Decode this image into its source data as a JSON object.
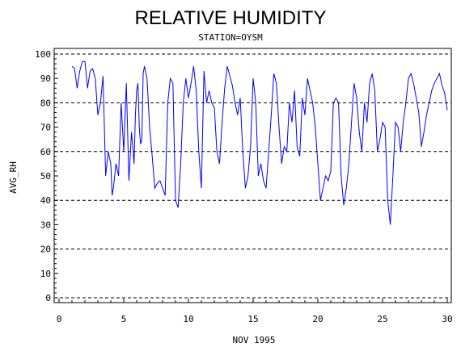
{
  "chart_data": {
    "type": "line",
    "title": "RELATIVE HUMIDITY",
    "subtitle": "STATION=OYSM",
    "xlabel": "NOV 1995",
    "ylabel": "AVG_RH",
    "xlim": [
      0,
      30
    ],
    "ylim": [
      0,
      100
    ],
    "x_ticks": [
      0,
      5,
      10,
      15,
      20,
      25,
      30
    ],
    "y_ticks": [
      0,
      10,
      20,
      30,
      40,
      50,
      60,
      70,
      80,
      90,
      100
    ],
    "grid": {
      "horizontal_dashed_at": [
        0,
        20,
        40,
        60,
        80,
        100
      ]
    },
    "line_color": "#0000ff",
    "series": [
      {
        "x": [
          1.0,
          1.2,
          1.4,
          1.6,
          1.8,
          2.0,
          2.2,
          2.4,
          2.6,
          2.8,
          3.0,
          3.2,
          3.4,
          3.6,
          3.8,
          4.0,
          4.1,
          4.2,
          4.4,
          4.6,
          4.8,
          5.0,
          5.2,
          5.4,
          5.6,
          5.8,
          5.9,
          6.0,
          6.1,
          6.2,
          6.3,
          6.4,
          6.5,
          6.6,
          6.8,
          7.0,
          7.2,
          7.4,
          7.6,
          7.8,
          8.0,
          8.2,
          8.4,
          8.6,
          8.8,
          9.0,
          9.2,
          9.4,
          9.6,
          9.8,
          10.0,
          10.2,
          10.4,
          10.6,
          10.8,
          11.0,
          11.2,
          11.4,
          11.6,
          11.8,
          12.0,
          12.2,
          12.4,
          12.6,
          12.8,
          13.0,
          13.2,
          13.4,
          13.6,
          13.8,
          14.0,
          14.2,
          14.4,
          14.6,
          14.8,
          15.0,
          15.2,
          15.4,
          15.6,
          15.8,
          16.0,
          16.2,
          16.4,
          16.6,
          16.8,
          17.0,
          17.2,
          17.4,
          17.6,
          17.8,
          18.0,
          18.2,
          18.4,
          18.6,
          18.8,
          19.0,
          19.2,
          19.4,
          19.6,
          19.8,
          20.0,
          20.2,
          20.4,
          20.6,
          20.8,
          21.0,
          21.2,
          21.4,
          21.6,
          21.8,
          22.0,
          22.2,
          22.4,
          22.6,
          22.8,
          23.0,
          23.2,
          23.4,
          23.6,
          23.8,
          24.0,
          24.2,
          24.4,
          24.6,
          24.8,
          25.0,
          25.2,
          25.4,
          25.6,
          25.8,
          26.0,
          26.2,
          26.4,
          26.6,
          26.8,
          27.0,
          27.2,
          27.4,
          27.6,
          27.8,
          28.0,
          28.2,
          28.4,
          28.6,
          28.8,
          29.0,
          29.2,
          29.4,
          29.6,
          29.8,
          30.0
        ],
        "values": [
          95,
          94,
          86,
          93,
          97,
          97,
          86,
          93,
          94,
          90,
          75,
          80,
          91,
          50,
          60,
          55,
          42,
          45,
          55,
          50,
          80,
          60,
          88,
          48,
          68,
          55,
          75,
          85,
          88,
          70,
          63,
          65,
          92,
          95,
          90,
          70,
          58,
          45,
          47,
          48,
          45,
          42,
          80,
          90,
          88,
          40,
          37,
          55,
          80,
          90,
          82,
          88,
          95,
          85,
          60,
          45,
          93,
          80,
          85,
          80,
          78,
          60,
          55,
          72,
          86,
          95,
          91,
          87,
          80,
          75,
          82,
          60,
          45,
          50,
          62,
          90,
          80,
          50,
          55,
          48,
          45,
          60,
          75,
          92,
          88,
          70,
          55,
          62,
          60,
          80,
          72,
          85,
          62,
          58,
          82,
          75,
          90,
          85,
          80,
          70,
          55,
          40,
          45,
          50,
          48,
          52,
          80,
          82,
          80,
          50,
          38,
          45,
          55,
          72,
          88,
          82,
          68,
          60,
          80,
          72,
          88,
          92,
          85,
          60,
          65,
          72,
          70,
          40,
          30,
          50,
          72,
          70,
          60,
          72,
          80,
          90,
          92,
          88,
          82,
          76,
          62,
          68,
          75,
          80,
          85,
          88,
          90,
          92,
          87,
          84,
          77
        ],
        "name": ""
      }
    ]
  }
}
